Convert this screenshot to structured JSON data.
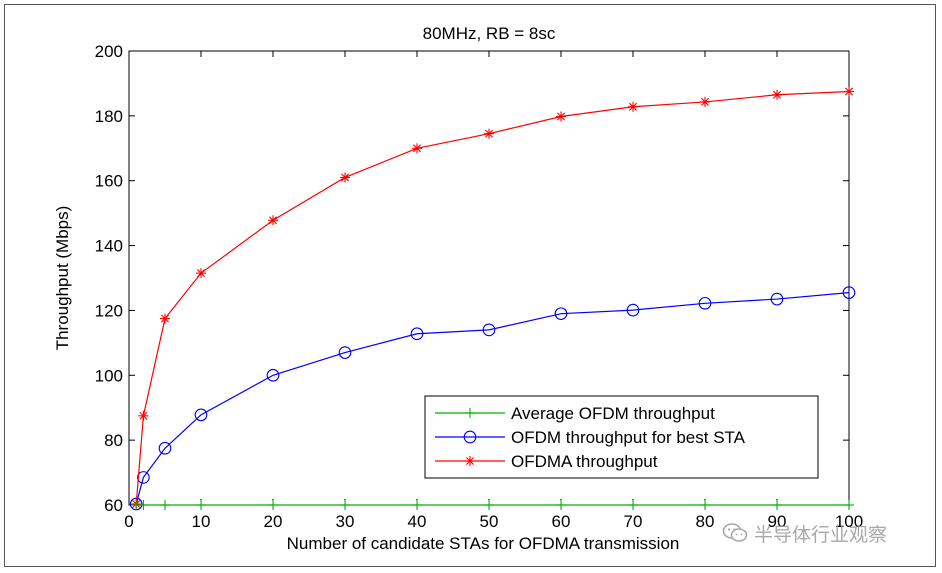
{
  "chart_data": {
    "type": "line",
    "title": "80MHz, RB = 8sc",
    "xlabel": "Number of candidate STAs for OFDMA transmission",
    "ylabel": "Throughput (Mbps)",
    "xlim": [
      0,
      100
    ],
    "ylim": [
      60,
      200
    ],
    "xticks": [
      0,
      10,
      20,
      30,
      40,
      50,
      60,
      70,
      80,
      90,
      100
    ],
    "yticks": [
      60,
      80,
      100,
      120,
      140,
      160,
      180,
      200
    ],
    "grid": false,
    "legend_position": "bottom-right",
    "series": [
      {
        "name": "Average OFDM throughput",
        "color": "#00b000",
        "marker": "plus",
        "x": [
          1,
          2,
          5,
          10,
          20,
          30,
          40,
          50,
          60,
          70,
          80,
          90,
          100
        ],
        "y": [
          60,
          60,
          60,
          60,
          60,
          60,
          60,
          60,
          60,
          60,
          60,
          60,
          60
        ]
      },
      {
        "name": "OFDM throughput for best STA",
        "color": "#0000ff",
        "marker": "circle",
        "x": [
          1,
          2,
          5,
          10,
          20,
          30,
          40,
          50,
          60,
          70,
          80,
          90,
          100
        ],
        "y": [
          60.3,
          68.5,
          77.5,
          87.8,
          100.0,
          107.0,
          112.8,
          114.0,
          119.0,
          120.1,
          122.2,
          123.5,
          125.5
        ]
      },
      {
        "name": "OFDMA throughput",
        "color": "#ff0000",
        "marker": "asterisk",
        "x": [
          1,
          2,
          5,
          10,
          20,
          30,
          40,
          50,
          60,
          70,
          80,
          90,
          100
        ],
        "y": [
          60.3,
          87.5,
          117.5,
          131.5,
          147.8,
          161.0,
          170.0,
          174.5,
          179.8,
          182.8,
          184.3,
          186.5,
          187.5
        ]
      }
    ]
  },
  "watermark": {
    "text": "半导体行业观察",
    "icon": "wechat-icon"
  }
}
